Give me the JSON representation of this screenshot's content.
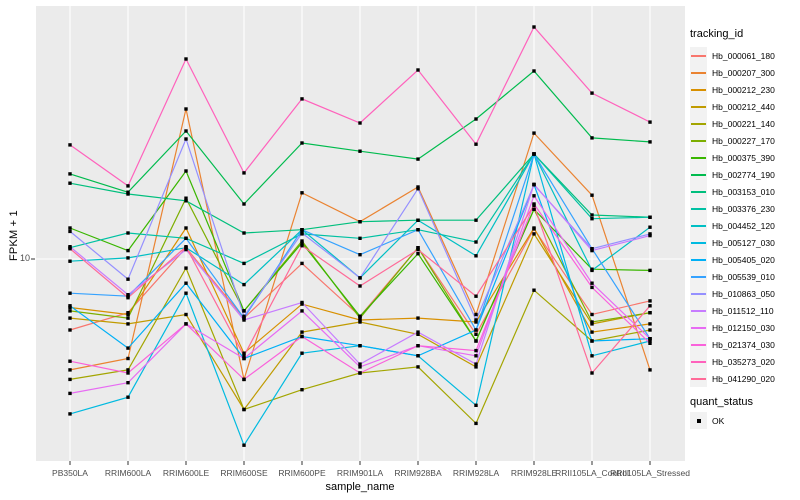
{
  "figure": {
    "ylabel": "FPKM + 1",
    "xlabel": "sample_name",
    "y_tick_label": "10",
    "legend_title": "tracking_id",
    "legend2_title": "quant_status",
    "legend2_item": "OK"
  },
  "colors": {
    "panel_bg": "#EBEBEB",
    "grid": "#FFFFFF",
    "legend_key_bg": "#F2F2F2",
    "tick_text": "#4D4D4D",
    "tick_mark": "#333333",
    "point": "#000000"
  },
  "chart_data": {
    "type": "line",
    "title": "",
    "xlabel": "sample_name",
    "ylabel": "FPKM + 1",
    "y_scale": "log10",
    "y_ticks": [
      10
    ],
    "ylim": [
      1.6,
      105
    ],
    "grid": true,
    "point_marker": "filled-square",
    "legend_position": "right",
    "legend_title": "tracking_id",
    "quant_legend": {
      "title": "quant_status",
      "items": [
        "OK"
      ]
    },
    "categories": [
      "PB350LA",
      "RRIM600LA",
      "RRIM600LE",
      "RRIM600SE",
      "RRIM600PE",
      "RRIM901LA",
      "RRIM928BA",
      "RRIM928LA",
      "RRIM928LE",
      "RRII105LA_Control",
      "RRII105LA_Stressed"
    ],
    "series": [
      {
        "id": "Hb_000061_180",
        "color": "#F8766D",
        "values": [
          5.2,
          6.1,
          11.1,
          5.8,
          9.6,
          5.9,
          11.1,
          5.0,
          13.2,
          6.0,
          6.8
        ]
      },
      {
        "id": "Hb_000207_300",
        "color": "#EA8331",
        "values": [
          3.6,
          4.0,
          39.8,
          3.3,
          18.4,
          14.1,
          19.4,
          6.0,
          31.9,
          18.0,
          3.6
        ]
      },
      {
        "id": "Hb_000212_230",
        "color": "#D89000",
        "values": [
          6.4,
          6.0,
          13.3,
          4.2,
          6.6,
          5.7,
          5.8,
          5.6,
          13.3,
          5.1,
          5.5
        ]
      },
      {
        "id": "Hb_000212_440",
        "color": "#C09B00",
        "values": [
          5.8,
          5.5,
          6.0,
          2.5,
          5.1,
          5.6,
          5.0,
          3.7,
          12.6,
          5.5,
          6.1
        ]
      },
      {
        "id": "Hb_000221_140",
        "color": "#A3A500",
        "values": [
          3.3,
          3.6,
          9.2,
          2.5,
          3.0,
          3.5,
          3.7,
          2.2,
          7.5,
          4.7,
          5.2
        ]
      },
      {
        "id": "Hb_000227_170",
        "color": "#7CAE00",
        "values": [
          6.2,
          5.8,
          17.5,
          6.2,
          11.8,
          5.8,
          11.1,
          4.7,
          15.8,
          5.6,
          6.1
        ]
      },
      {
        "id": "Hb_000375_390",
        "color": "#39B600",
        "values": [
          13.3,
          10.8,
          22.5,
          6.2,
          11.6,
          5.9,
          10.5,
          4.7,
          15.8,
          9.1,
          9.0
        ]
      },
      {
        "id": "Hb_002774_190",
        "color": "#00BB4E",
        "values": [
          21.9,
          18.5,
          32.5,
          16.6,
          29.1,
          27.0,
          25.1,
          36.3,
          56.5,
          30.5,
          29.4
        ]
      },
      {
        "id": "Hb_003153_010",
        "color": "#00BF7D",
        "values": [
          20.1,
          18.2,
          17.1,
          12.7,
          13.1,
          14.1,
          14.3,
          14.3,
          26.3,
          15.0,
          14.7
        ]
      },
      {
        "id": "Hb_003376_230",
        "color": "#00C1A3",
        "values": [
          11.1,
          12.7,
          12.1,
          9.6,
          12.6,
          12.1,
          13.1,
          11.7,
          26.3,
          14.5,
          14.7
        ]
      },
      {
        "id": "Hb_004452_120",
        "color": "#00BFC4",
        "values": [
          9.8,
          10.1,
          11.1,
          7.9,
          13.1,
          8.4,
          14.3,
          10.3,
          26.3,
          9.0,
          13.4
        ]
      },
      {
        "id": "Hb_005127_030",
        "color": "#00BAE0",
        "values": [
          2.4,
          2.8,
          7.3,
          1.8,
          4.2,
          4.5,
          4.1,
          2.6,
          26.3,
          4.1,
          4.7
        ]
      },
      {
        "id": "Hb_005405_020",
        "color": "#00B0F6",
        "values": [
          6.5,
          4.4,
          8.0,
          4.0,
          4.9,
          4.5,
          4.1,
          5.2,
          19.8,
          4.7,
          4.8
        ]
      },
      {
        "id": "Hb_005539_010",
        "color": "#35A2FF",
        "values": [
          7.3,
          7.1,
          12.1,
          5.8,
          13.1,
          10.4,
          13.1,
          5.2,
          26.3,
          11.0,
          4.8
        ]
      },
      {
        "id": "Hb_010863_050",
        "color": "#9590FF",
        "values": [
          12.9,
          8.3,
          30.2,
          5.9,
          12.7,
          8.4,
          19.1,
          5.7,
          19.8,
          11.0,
          12.6
        ]
      },
      {
        "id": "Hb_011512_110",
        "color": "#C77CFF",
        "values": [
          11.2,
          7.2,
          10.9,
          5.7,
          6.7,
          3.8,
          5.1,
          3.8,
          19.9,
          10.8,
          12.4
        ]
      },
      {
        "id": "Hb_012150_030",
        "color": "#E76BF3",
        "values": [
          2.9,
          3.2,
          5.5,
          4.0,
          6.2,
          3.7,
          4.5,
          4.1,
          17.9,
          8.0,
          4.8
        ]
      },
      {
        "id": "Hb_021374_030",
        "color": "#FA62DB",
        "values": [
          3.9,
          3.5,
          5.5,
          3.3,
          4.9,
          3.5,
          4.5,
          4.3,
          16.6,
          7.7,
          4.6
        ]
      },
      {
        "id": "Hb_035273_020",
        "color": "#FF62BC",
        "values": [
          28.6,
          19.6,
          63.1,
          22.1,
          43.7,
          35.0,
          57.0,
          28.8,
          84.7,
          46.1,
          35.3
        ]
      },
      {
        "id": "Hb_041290_020",
        "color": "#FF6A98",
        "values": [
          11.0,
          7.0,
          11.2,
          4.1,
          11.3,
          7.8,
          10.9,
          7.1,
          16.4,
          3.5,
          6.5
        ]
      }
    ]
  }
}
